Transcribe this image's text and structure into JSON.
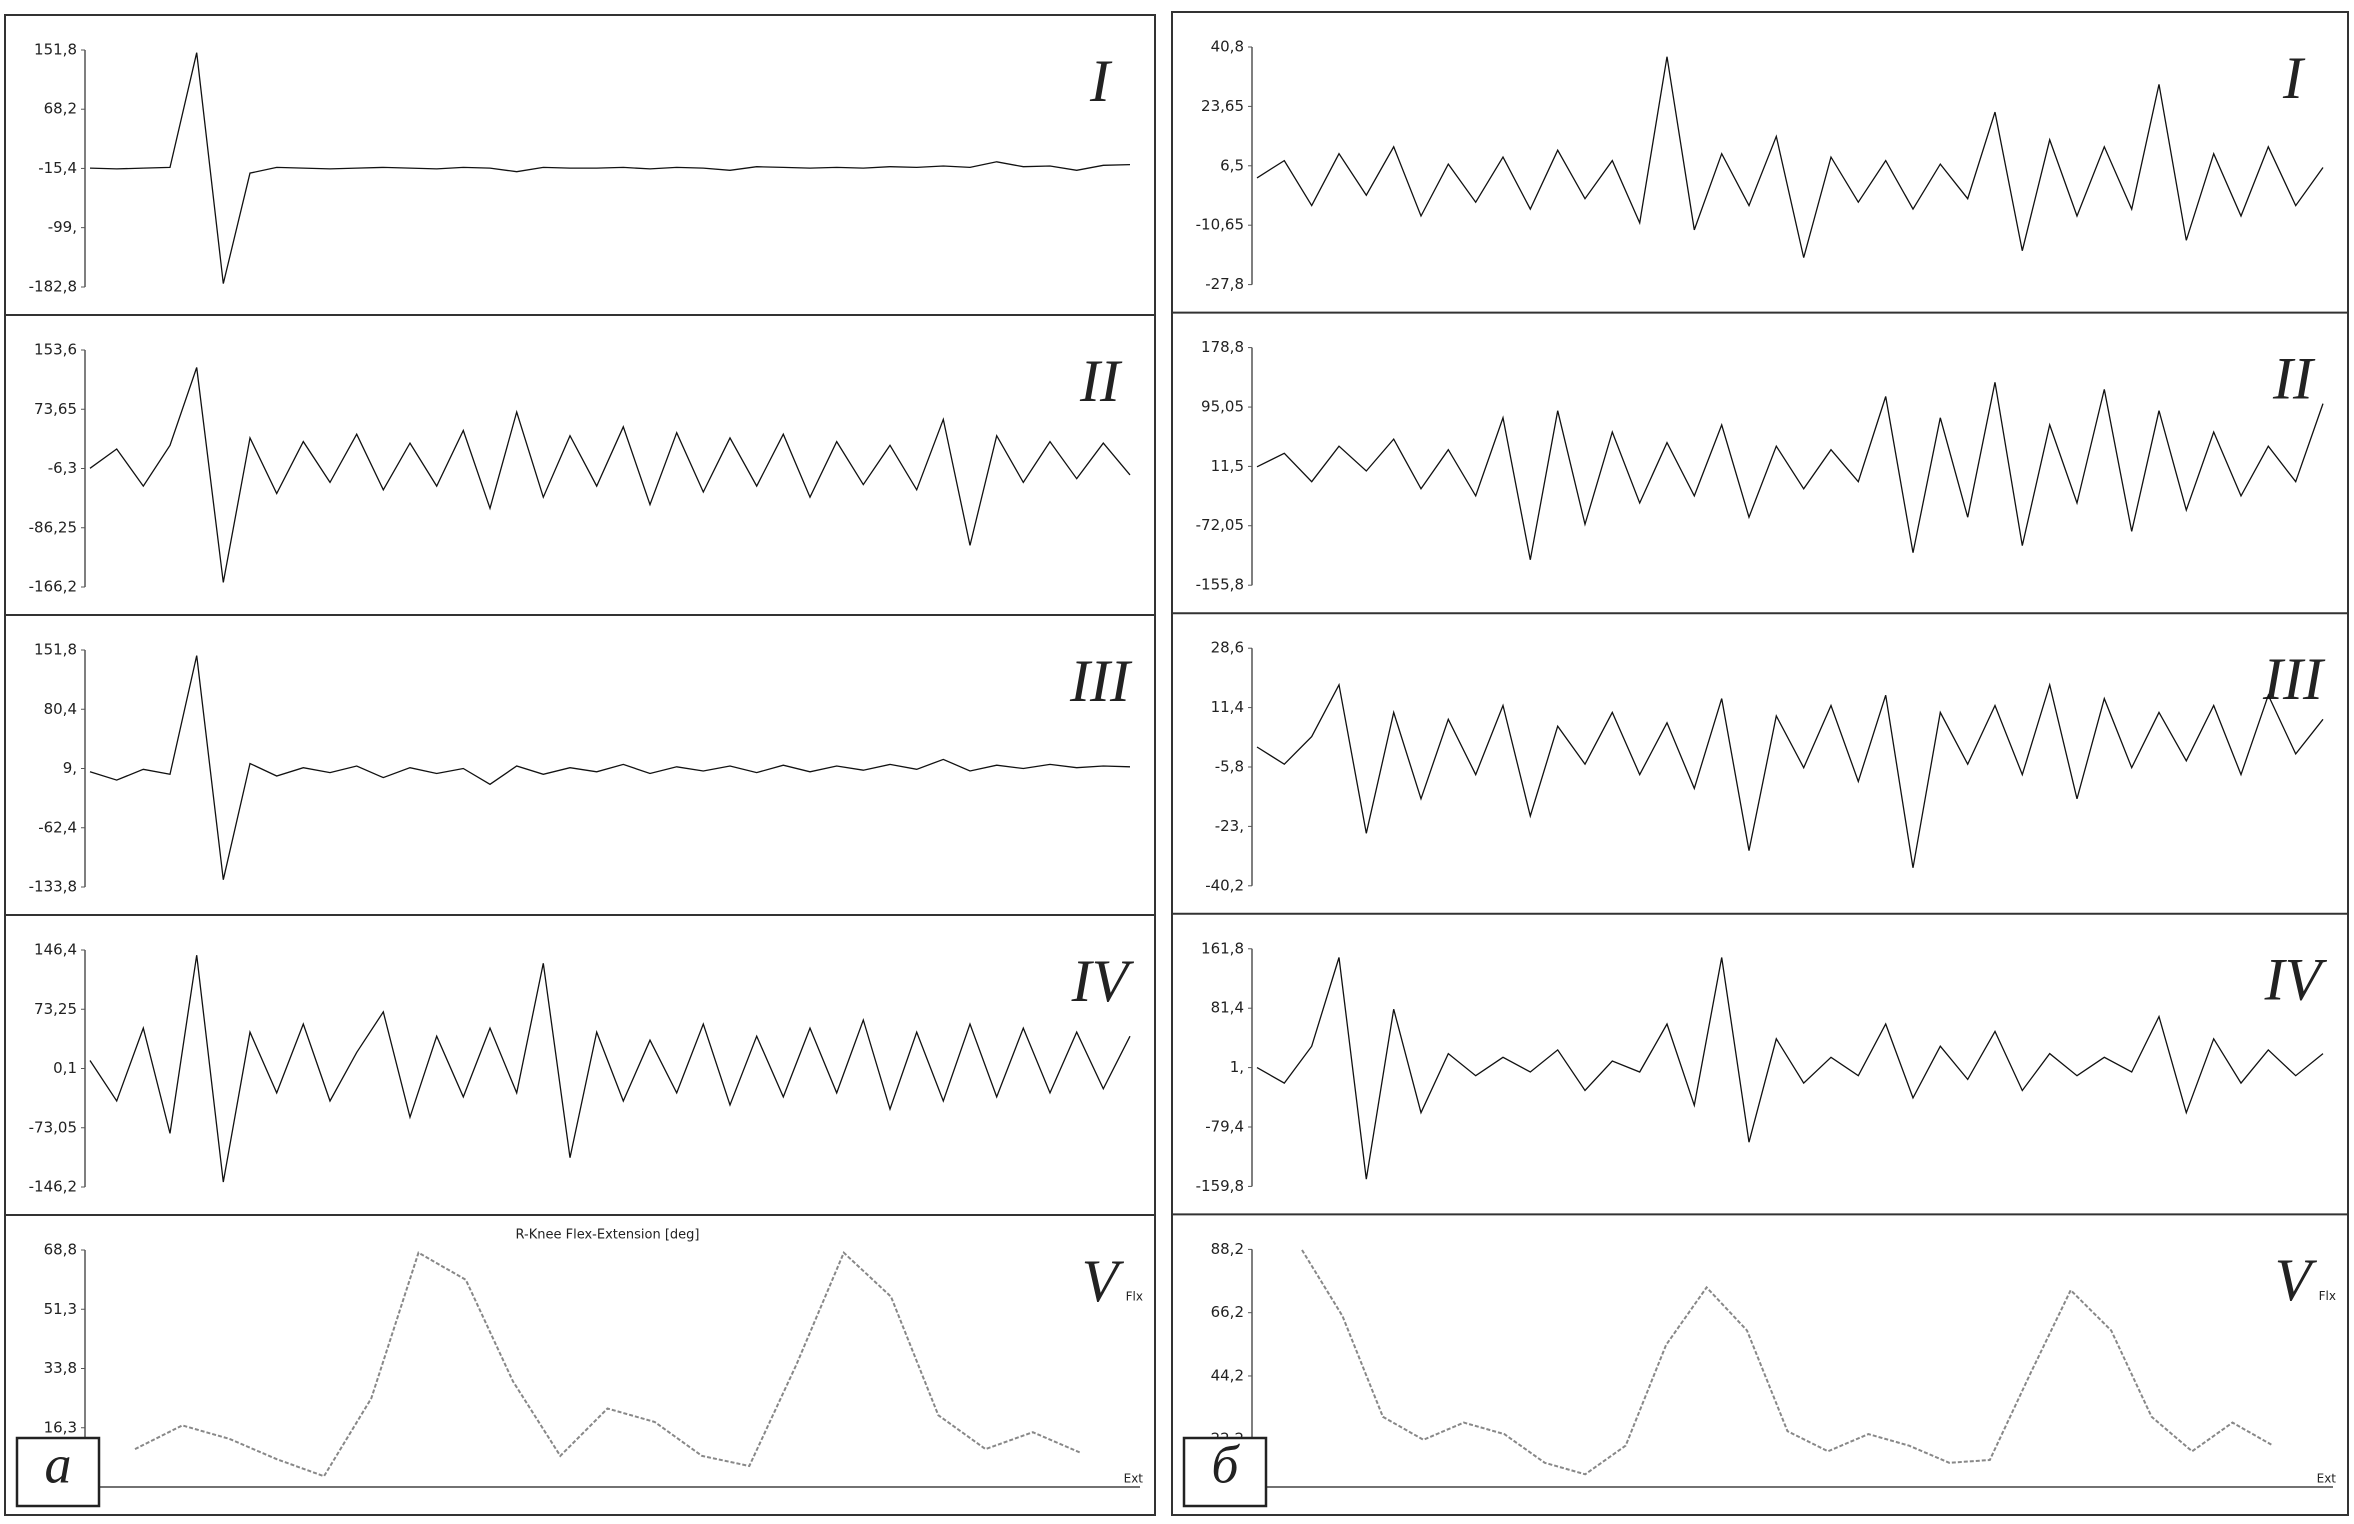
{
  "figure_labels": [
    "а",
    "б"
  ],
  "chart_data": [
    {
      "type": "line",
      "panel": "I",
      "ylim": [
        -182.8,
        151.8
      ],
      "yticks": [
        {
          "value": 151.8,
          "label": "151,8"
        },
        {
          "value": 68.2,
          "label": "68,2"
        },
        {
          "value": -15.4,
          "label": "-15,4"
        },
        {
          "value": -99,
          "label": "-99,"
        },
        {
          "value": -182.8,
          "label": "-182,8"
        }
      ],
      "values": [
        -15,
        -16,
        -15,
        -14,
        148,
        -178,
        -22,
        -14,
        -15,
        -16,
        -15,
        -14,
        -15,
        -16,
        -14,
        -15,
        -20,
        -14,
        -15,
        -15,
        -14,
        -16,
        -14,
        -15,
        -18,
        -13,
        -14,
        -15,
        -14,
        -15,
        -13,
        -14,
        -12,
        -14,
        -6,
        -13,
        -12,
        -18,
        -11,
        -10
      ]
    },
    {
      "type": "line",
      "panel": "II",
      "ylim": [
        -166.2,
        153.6
      ],
      "yticks": [
        {
          "value": 153.6,
          "label": "153,6"
        },
        {
          "value": 73.65,
          "label": "73,65"
        },
        {
          "value": -6.3,
          "label": "-6,3"
        },
        {
          "value": -86.25,
          "label": "-86,25"
        },
        {
          "value": -166.2,
          "label": "-166,2"
        }
      ],
      "values": [
        -6,
        20,
        -30,
        25,
        130,
        -160,
        35,
        -40,
        30,
        -25,
        40,
        -35,
        28,
        -30,
        45,
        -60,
        70,
        -45,
        38,
        -30,
        50,
        -55,
        42,
        -38,
        35,
        -30,
        40,
        -45,
        30,
        -28,
        25,
        -35,
        60,
        -110,
        38,
        -25,
        30,
        -20,
        28,
        -15
      ]
    },
    {
      "type": "line",
      "panel": "III",
      "ylim": [
        -133.8,
        151.8
      ],
      "yticks": [
        {
          "value": 151.8,
          "label": "151,8"
        },
        {
          "value": 80.4,
          "label": "80,4"
        },
        {
          "value": 9,
          "label": "9,"
        },
        {
          "value": -62.4,
          "label": "-62,4"
        },
        {
          "value": -133.8,
          "label": "-133,8"
        }
      ],
      "values": [
        5,
        -5,
        8,
        2,
        145,
        -125,
        15,
        0,
        10,
        4,
        12,
        -2,
        10,
        3,
        9,
        -10,
        12,
        2,
        10,
        5,
        14,
        3,
        11,
        6,
        12,
        4,
        13,
        5,
        12,
        7,
        14,
        8,
        20,
        6,
        13,
        9,
        14,
        10,
        12,
        11
      ]
    },
    {
      "type": "line",
      "panel": "IV",
      "ylim": [
        -146.2,
        146.4
      ],
      "yticks": [
        {
          "value": 146.4,
          "label": "146,4"
        },
        {
          "value": 73.25,
          "label": "73,25"
        },
        {
          "value": 0.1,
          "label": "0,1"
        },
        {
          "value": -73.05,
          "label": "-73,05"
        },
        {
          "value": -146.2,
          "label": "-146,2"
        }
      ],
      "values": [
        10,
        -40,
        50,
        -80,
        140,
        -140,
        45,
        -30,
        55,
        -40,
        20,
        70,
        -60,
        40,
        -35,
        50,
        -30,
        130,
        -110,
        45,
        -40,
        35,
        -30,
        55,
        -45,
        40,
        -35,
        50,
        -30,
        60,
        -50,
        45,
        -40,
        55,
        -35,
        50,
        -30,
        45,
        -25,
        40
      ]
    },
    {
      "type": "line",
      "panel": "V",
      "title": "R-Knee Flex-Extension [deg]",
      "flex_label": "Flx",
      "ext_label": "Ext",
      "ylim": [
        -1.2,
        68.8
      ],
      "yticks": [
        {
          "value": 68.8,
          "label": "68,8"
        },
        {
          "value": 51.3,
          "label": "51,3"
        },
        {
          "value": 33.8,
          "label": "33,8"
        },
        {
          "value": 16.3,
          "label": "16,3"
        }
      ],
      "values": [
        10,
        17,
        13,
        7,
        2,
        25,
        68,
        60,
        30,
        8,
        22,
        18,
        8,
        5,
        35,
        68,
        55,
        20,
        10,
        15,
        9
      ]
    },
    {
      "type": "line",
      "panel": "I",
      "ylim": [
        -27.8,
        40.8
      ],
      "yticks": [
        {
          "value": 40.8,
          "label": "40,8"
        },
        {
          "value": 23.65,
          "label": "23,65"
        },
        {
          "value": 6.5,
          "label": "6,5"
        },
        {
          "value": -10.65,
          "label": "-10,65"
        },
        {
          "value": -27.8,
          "label": "-27,8"
        }
      ],
      "values": [
        3,
        8,
        -5,
        10,
        -2,
        12,
        -8,
        7,
        -4,
        9,
        -6,
        11,
        -3,
        8,
        -10,
        38,
        -12,
        10,
        -5,
        15,
        -20,
        9,
        -4,
        8,
        -6,
        7,
        -3,
        22,
        -18,
        14,
        -8,
        12,
        -6,
        30,
        -15,
        10,
        -8,
        12,
        -5,
        6
      ]
    },
    {
      "type": "line",
      "panel": "II",
      "ylim": [
        -155.8,
        178.8
      ],
      "yticks": [
        {
          "value": 178.8,
          "label": "178,8"
        },
        {
          "value": 95.05,
          "label": "95,05"
        },
        {
          "value": 11.5,
          "label": "11,5"
        },
        {
          "value": -72.05,
          "label": "-72,05"
        },
        {
          "value": -155.8,
          "label": "-155,8"
        }
      ],
      "values": [
        11,
        30,
        -10,
        40,
        5,
        50,
        -20,
        35,
        -30,
        80,
        -120,
        90,
        -70,
        60,
        -40,
        45,
        -30,
        70,
        -60,
        40,
        -20,
        35,
        -10,
        110,
        -110,
        80,
        -60,
        130,
        -100,
        70,
        -40,
        120,
        -80,
        90,
        -50,
        60,
        -30,
        40,
        -10,
        100
      ]
    },
    {
      "type": "line",
      "panel": "III",
      "ylim": [
        -40.2,
        28.6
      ],
      "yticks": [
        {
          "value": 28.6,
          "label": "28,6"
        },
        {
          "value": 11.4,
          "label": "11,4"
        },
        {
          "value": -5.8,
          "label": "-5,8"
        },
        {
          "value": -23,
          "label": "-23,"
        },
        {
          "value": -40.2,
          "label": "-40,2"
        }
      ],
      "values": [
        0,
        -5,
        3,
        18,
        -25,
        10,
        -15,
        8,
        -8,
        12,
        -20,
        6,
        -5,
        10,
        -8,
        7,
        -12,
        14,
        -30,
        9,
        -6,
        12,
        -10,
        15,
        -35,
        10,
        -5,
        12,
        -8,
        18,
        -15,
        14,
        -6,
        10,
        -4,
        12,
        -8,
        15,
        -2,
        8
      ]
    },
    {
      "type": "line",
      "panel": "IV",
      "ylim": [
        -159.8,
        161.8
      ],
      "yticks": [
        {
          "value": 161.8,
          "label": "161,8"
        },
        {
          "value": 81.4,
          "label": "81,4"
        },
        {
          "value": 1,
          "label": "1,"
        },
        {
          "value": -79.4,
          "label": "-79,4"
        },
        {
          "value": -159.8,
          "label": "-159,8"
        }
      ],
      "values": [
        1,
        -20,
        30,
        150,
        -150,
        80,
        -60,
        20,
        -10,
        15,
        -5,
        25,
        -30,
        10,
        -5,
        60,
        -50,
        150,
        -100,
        40,
        -20,
        15,
        -10,
        60,
        -40,
        30,
        -15,
        50,
        -30,
        20,
        -10,
        15,
        -5,
        70,
        -60,
        40,
        -20,
        25,
        -10,
        20
      ]
    },
    {
      "type": "line",
      "panel": "V",
      "flex_label": "Flx",
      "ext_label": "Ext",
      "ylim": [
        5.6,
        88.2
      ],
      "yticks": [
        {
          "value": 88.2,
          "label": "88,2"
        },
        {
          "value": 66.2,
          "label": "66,2"
        },
        {
          "value": 44.2,
          "label": "44,2"
        },
        {
          "value": 22.2,
          "label": "22,2"
        }
      ],
      "values": [
        88,
        65,
        30,
        22,
        28,
        24,
        14,
        10,
        20,
        55,
        75,
        60,
        25,
        18,
        24,
        20,
        14,
        15,
        45,
        74,
        60,
        30,
        18,
        28,
        20
      ]
    }
  ]
}
